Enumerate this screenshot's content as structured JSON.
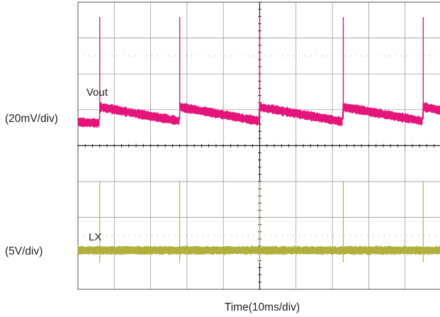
{
  "chart_data": {
    "type": "line",
    "title": "",
    "xlabel": "Time(10ms/div)",
    "grid": true,
    "x_divisions": 10,
    "y_divisions": 8,
    "channels": [
      {
        "name": "Vout",
        "scale_label": "(20mV/div)",
        "color": "#e4147a",
        "waveform": "sawtooth with spikes",
        "spike_times_div": [
          0.6,
          2.8,
          5.0,
          7.3,
          9.5
        ]
      },
      {
        "name": "LX",
        "scale_label": "(5V/div)",
        "color": "#b0b03c",
        "waveform": "flat noisy baseline with spikes",
        "spike_times_div": [
          0.6,
          2.8,
          5.0,
          7.3,
          9.5
        ]
      }
    ]
  }
}
